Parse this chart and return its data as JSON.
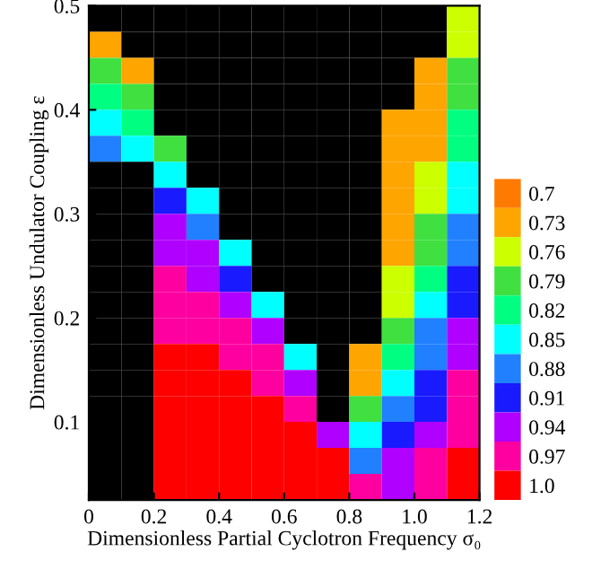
{
  "chart_data": {
    "type": "heatmap",
    "xlabel": "Dimensionless Partial Cyclotron Frequency σ₀",
    "ylabel": "Dimensionless Undulator Coupling ε",
    "x": [
      0.05,
      0.15,
      0.25,
      0.35,
      0.45,
      0.55,
      0.65,
      0.75,
      0.85,
      0.95,
      1.05,
      1.15
    ],
    "y": [
      0.4875,
      0.4625,
      0.4375,
      0.4125,
      0.3875,
      0.3625,
      0.3375,
      0.3125,
      0.2875,
      0.2625,
      0.2375,
      0.2125,
      0.1875,
      0.1625,
      0.1375,
      0.1125,
      0.0875,
      0.0625,
      0.0375
    ],
    "xlim": [
      0,
      1.2
    ],
    "ylim": [
      0.025,
      0.5
    ],
    "xticks": [
      0,
      0.2,
      0.4,
      0.6,
      0.8,
      {
        "value": 1.0,
        "label": "1.0"
      },
      1.2
    ],
    "yticks": [
      0.1,
      0.2,
      0.3,
      0.4,
      0.5
    ],
    "clim": [
      1.015,
      0.685
    ],
    "cticks": [
      0.7,
      0.73,
      0.76,
      0.79,
      0.82,
      0.85,
      0.88,
      0.91,
      0.94,
      0.97,
      {
        "value": 1.0,
        "label": "1.0"
      }
    ],
    "colors": [
      "#ff7a00",
      "#ffa500",
      "#ccff00",
      "#40e040",
      "#00ff80",
      "#00ffff",
      "#2080ff",
      "#1a1aff",
      "#b000ff",
      "#ff00a0",
      "#ff0000"
    ],
    "cells": [
      [
        null,
        null,
        null,
        null,
        null,
        null,
        null,
        null,
        null,
        null,
        null,
        0.76
      ],
      [
        0.73,
        null,
        null,
        null,
        null,
        null,
        null,
        null,
        null,
        null,
        null,
        0.76
      ],
      [
        0.79,
        0.73,
        null,
        null,
        null,
        null,
        null,
        null,
        null,
        null,
        0.73,
        0.79
      ],
      [
        0.82,
        0.79,
        null,
        null,
        null,
        null,
        null,
        null,
        null,
        null,
        0.73,
        0.79
      ],
      [
        0.85,
        0.82,
        null,
        null,
        null,
        null,
        null,
        null,
        null,
        0.73,
        0.73,
        0.82
      ],
      [
        0.88,
        0.85,
        0.79,
        null,
        null,
        null,
        null,
        null,
        null,
        0.73,
        0.73,
        0.82
      ],
      [
        null,
        null,
        0.85,
        null,
        null,
        null,
        null,
        null,
        null,
        0.73,
        0.76,
        0.85
      ],
      [
        null,
        null,
        0.91,
        0.85,
        null,
        null,
        null,
        null,
        null,
        0.73,
        0.76,
        0.85
      ],
      [
        null,
        null,
        0.94,
        0.88,
        null,
        null,
        null,
        null,
        null,
        0.73,
        0.79,
        0.88
      ],
      [
        null,
        null,
        0.94,
        0.94,
        0.85,
        null,
        null,
        null,
        null,
        0.73,
        0.79,
        0.88
      ],
      [
        null,
        null,
        0.97,
        0.94,
        0.91,
        null,
        null,
        null,
        null,
        0.76,
        0.82,
        0.91
      ],
      [
        null,
        null,
        0.97,
        0.97,
        0.94,
        0.85,
        null,
        null,
        null,
        0.76,
        0.85,
        0.91
      ],
      [
        null,
        null,
        0.97,
        0.97,
        0.97,
        0.94,
        null,
        null,
        null,
        0.79,
        0.88,
        0.94
      ],
      [
        null,
        null,
        1.0,
        1.0,
        0.97,
        0.97,
        0.85,
        null,
        0.73,
        0.82,
        0.88,
        0.94
      ],
      [
        null,
        null,
        1.0,
        1.0,
        1.0,
        0.97,
        0.94,
        null,
        0.73,
        0.85,
        0.91,
        0.97
      ],
      [
        null,
        null,
        1.0,
        1.0,
        1.0,
        1.0,
        0.97,
        null,
        0.79,
        0.88,
        0.91,
        0.97
      ],
      [
        null,
        null,
        1.0,
        1.0,
        1.0,
        1.0,
        1.0,
        0.94,
        0.85,
        0.91,
        0.94,
        0.97
      ],
      [
        null,
        null,
        1.0,
        1.0,
        1.0,
        1.0,
        1.0,
        1.0,
        0.88,
        0.94,
        0.97,
        1.0
      ],
      [
        null,
        null,
        1.0,
        1.0,
        1.0,
        1.0,
        1.0,
        1.0,
        0.97,
        0.94,
        0.97,
        1.0
      ]
    ]
  }
}
